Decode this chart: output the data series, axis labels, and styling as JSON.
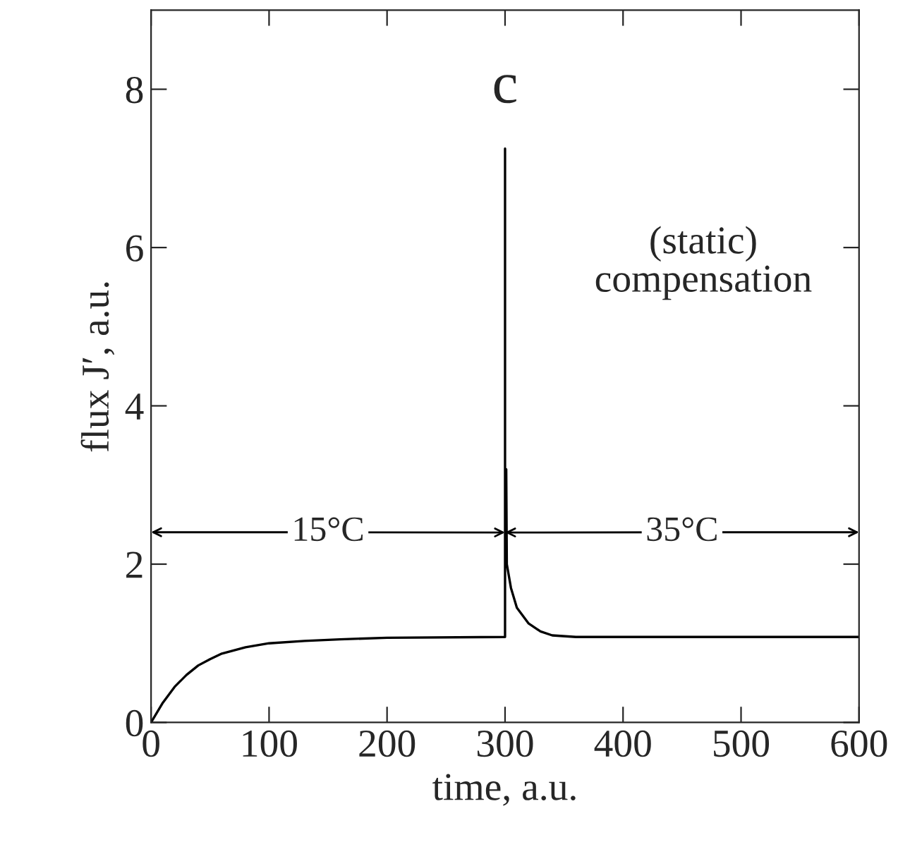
{
  "chart_data": {
    "type": "line",
    "xlabel": "time, a.u.",
    "ylabel": "flux J′, a.u.",
    "xlim": [
      0,
      600
    ],
    "xticks": [
      0,
      100,
      200,
      300,
      400,
      500,
      600
    ],
    "ylim": [
      0,
      9
    ],
    "yticks": [
      0,
      2,
      4,
      6,
      8
    ],
    "series": [
      {
        "color": "#000000",
        "x": [
          0,
          10,
          20,
          30,
          40,
          50,
          60,
          80,
          100,
          130,
          160,
          200,
          300,
          300,
          300,
          301,
          301.5,
          305,
          310,
          320,
          330,
          340,
          360,
          600
        ],
        "values": [
          0,
          0.25,
          0.45,
          0.6,
          0.72,
          0.8,
          0.87,
          0.95,
          1.0,
          1.03,
          1.05,
          1.07,
          1.08,
          7.25,
          2.0,
          3.2,
          2.0,
          1.7,
          1.45,
          1.25,
          1.15,
          1.1,
          1.08,
          1.08
        ]
      }
    ],
    "annotations": [
      "c",
      "(static)\ncompensation",
      {
        "text": "15°C",
        "x": 300,
        "y": 2.4
      },
      {
        "text": "35°C",
        "x": 300,
        "y": 2.4
      }
    ],
    "grid": false
  }
}
